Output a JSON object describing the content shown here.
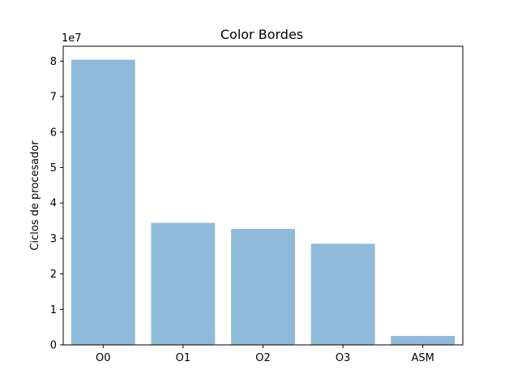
{
  "chart_data": {
    "type": "bar",
    "title": "Color Bordes",
    "xlabel": "",
    "ylabel": "Ciclos de procesador",
    "y_offset_label": "1e7",
    "categories": [
      "O0",
      "O1",
      "O2",
      "O3",
      "ASM"
    ],
    "values": [
      80400000,
      34400000,
      32700000,
      28500000,
      2500000
    ],
    "ylim": [
      0,
      84200000
    ],
    "y_ticks": [
      0,
      10000000,
      20000000,
      30000000,
      40000000,
      50000000,
      60000000,
      70000000,
      80000000
    ],
    "y_tick_labels": [
      "0",
      "1",
      "2",
      "3",
      "4",
      "5",
      "6",
      "7",
      "8"
    ],
    "bar_color": "#8fbad9",
    "grid": false,
    "legend": "none"
  }
}
